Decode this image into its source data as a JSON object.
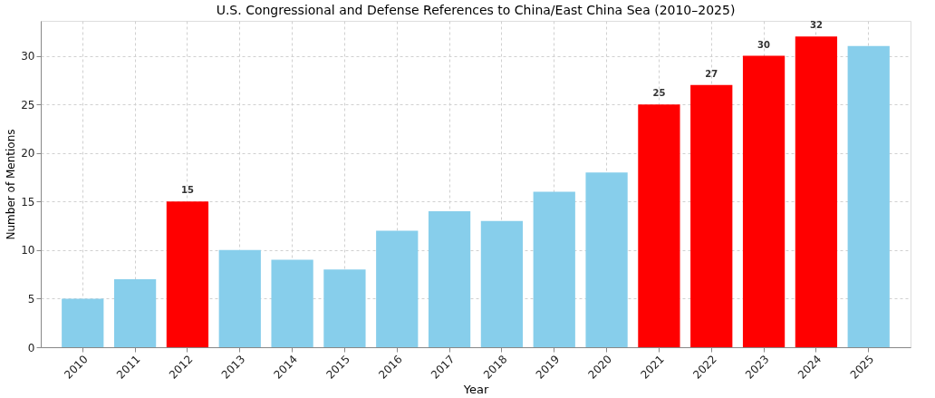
{
  "chart_data": {
    "type": "bar",
    "title": "U.S. Congressional and Defense References to China/East China Sea (2010–2025)",
    "xlabel": "Year",
    "ylabel": "Number of Mentions",
    "categories": [
      "2010",
      "2011",
      "2012",
      "2013",
      "2014",
      "2015",
      "2016",
      "2017",
      "2018",
      "2019",
      "2020",
      "2021",
      "2022",
      "2023",
      "2024",
      "2025"
    ],
    "values": [
      5,
      7,
      15,
      10,
      9,
      8,
      12,
      14,
      13,
      16,
      18,
      25,
      27,
      30,
      32,
      31
    ],
    "colors": [
      "#87ceeb",
      "#87ceeb",
      "#ff0000",
      "#87ceeb",
      "#87ceeb",
      "#87ceeb",
      "#87ceeb",
      "#87ceeb",
      "#87ceeb",
      "#87ceeb",
      "#87ceeb",
      "#ff0000",
      "#ff0000",
      "#ff0000",
      "#ff0000",
      "#87ceeb"
    ],
    "value_labels": [
      null,
      null,
      "15",
      null,
      null,
      null,
      null,
      null,
      null,
      null,
      null,
      "25",
      "27",
      "30",
      "32",
      null
    ],
    "ylim": [
      0,
      33.6
    ],
    "yticks": [
      0,
      5,
      10,
      15,
      20,
      25,
      30
    ],
    "grid": true
  }
}
